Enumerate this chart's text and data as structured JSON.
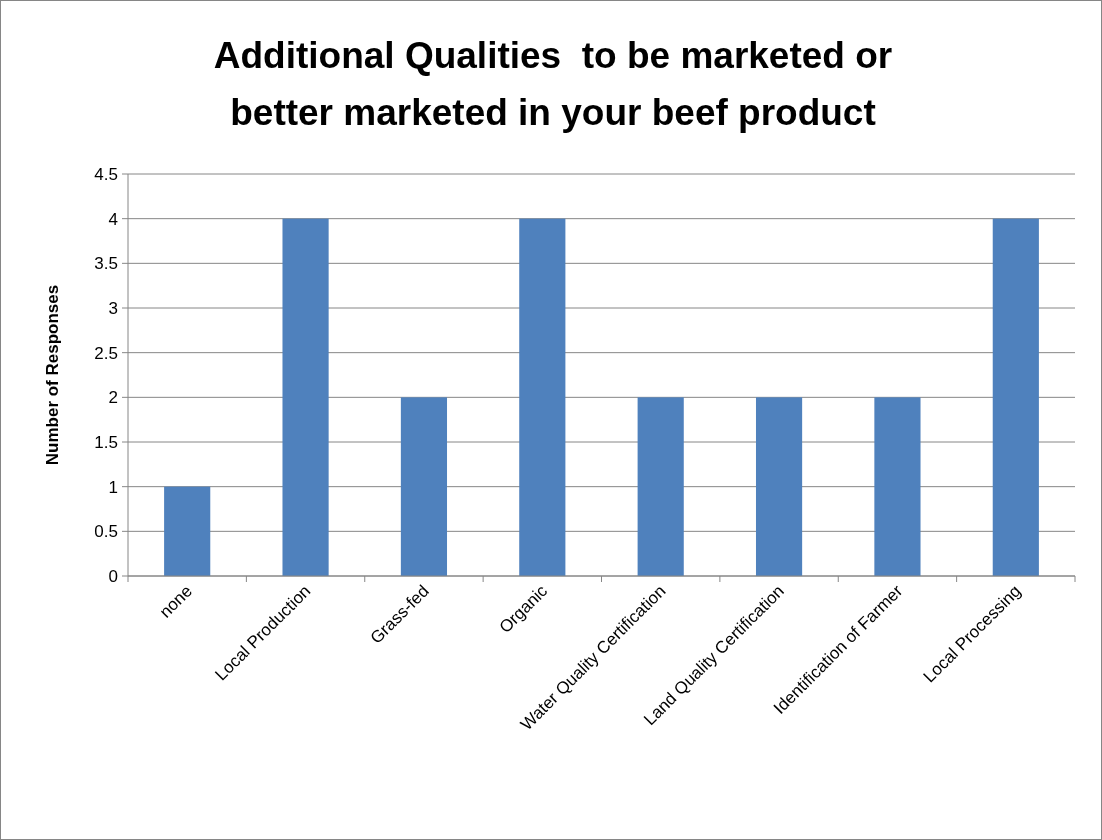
{
  "chart_data": {
    "type": "bar",
    "title": "Additional Qualities  to be marketed or\nbetter marketed in your beef product",
    "ylabel": "Number of Responses",
    "categories": [
      "none",
      "Local Production",
      "Grass-fed",
      "Organic",
      "Water Quality Certification",
      "Land Quality Certification",
      "Identification of Farmer",
      "Local Processing"
    ],
    "values": [
      1,
      4,
      2,
      4,
      2,
      2,
      2,
      4
    ],
    "color": "#4f81bd",
    "ylim": [
      0,
      4.5
    ],
    "yticks": [
      0,
      {
        "value": 0.5,
        "label": "0.5"
      },
      1,
      {
        "value": 1.5,
        "label": "1.5"
      },
      2,
      {
        "value": 2.5,
        "label": "2.5"
      },
      3,
      {
        "value": 3.5,
        "label": "3.5"
      },
      4,
      {
        "value": 4.5,
        "label": "4.5"
      }
    ],
    "grid": "y"
  }
}
